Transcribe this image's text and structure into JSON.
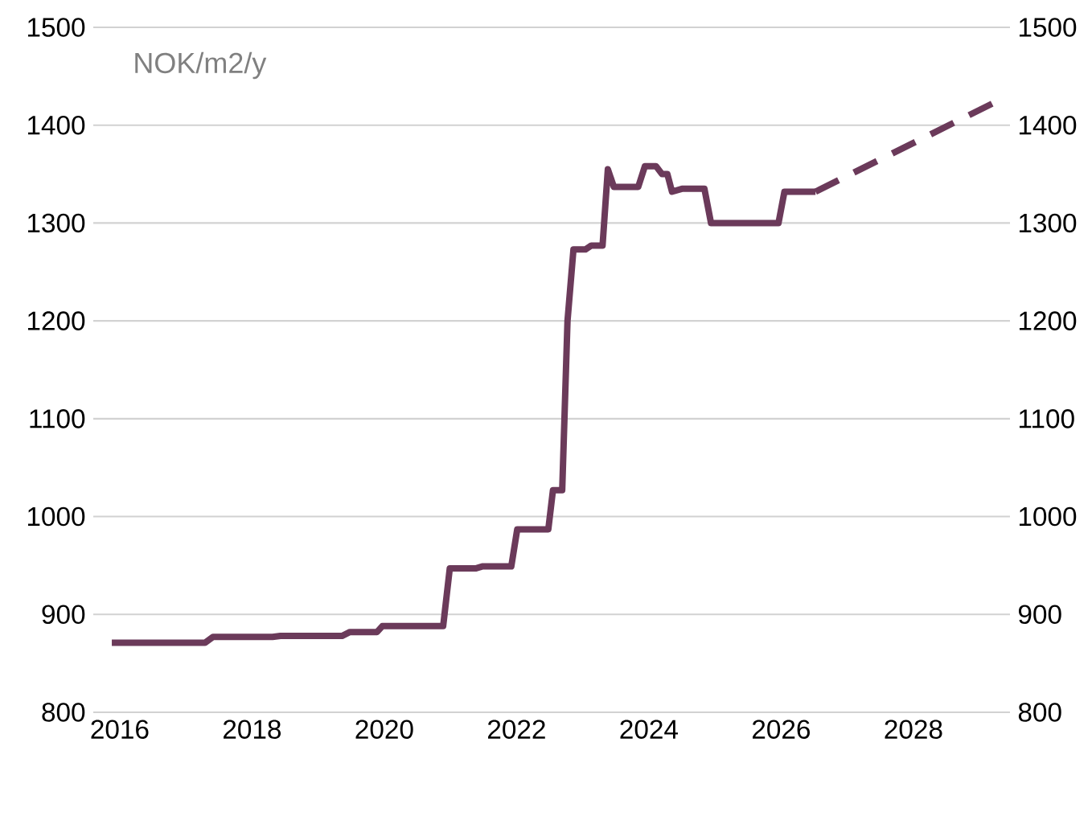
{
  "chart_data": {
    "type": "line",
    "ylabel": "NOK/m2/y",
    "grid": "y",
    "xlim": [
      2015.6,
      2029.46
    ],
    "xticks": [
      2016,
      2018,
      2020,
      2022,
      2024,
      2026,
      2028
    ],
    "ylim": [
      800,
      1500
    ],
    "yticks": [
      800,
      900,
      1000,
      1100,
      1200,
      1300,
      1400,
      1500
    ],
    "y2lim": [
      800,
      1500
    ],
    "y2ticks": [
      800,
      900,
      1000,
      1100,
      1200,
      1300,
      1400,
      1500
    ],
    "series": [
      {
        "color": "#6b3a5a",
        "line_style": "solid",
        "x": [
          2015.88,
          2017.29,
          2017.41,
          2018.31,
          2018.43,
          2019.36,
          2019.48,
          2019.89,
          2019.97,
          2020.89,
          2020.99,
          2021.38,
          2021.48,
          2021.92,
          2022.01,
          2022.48,
          2022.55,
          2022.69,
          2022.77,
          2022.86,
          2023.04,
          2023.13,
          2023.3,
          2023.38,
          2023.47,
          2023.84,
          2023.94,
          2024.11,
          2024.2,
          2024.28,
          2024.35,
          2024.5,
          2024.84,
          2024.94,
          2025.96,
          2026.05,
          2026.52
        ],
        "values": [
          871,
          871,
          877,
          877,
          878,
          878,
          882,
          882,
          888,
          888,
          947,
          947,
          949,
          949,
          987,
          987,
          1027,
          1027,
          1200,
          1273,
          1273,
          1277,
          1277,
          1355,
          1337,
          1337,
          1358,
          1358,
          1350,
          1350,
          1332,
          1335,
          1335,
          1300,
          1300,
          1332,
          1332
        ]
      },
      {
        "color": "#6b3a5a",
        "line_style": "dashed",
        "x": [
          2026.52,
          2029.22
        ],
        "values": [
          1332,
          1423
        ]
      }
    ]
  }
}
